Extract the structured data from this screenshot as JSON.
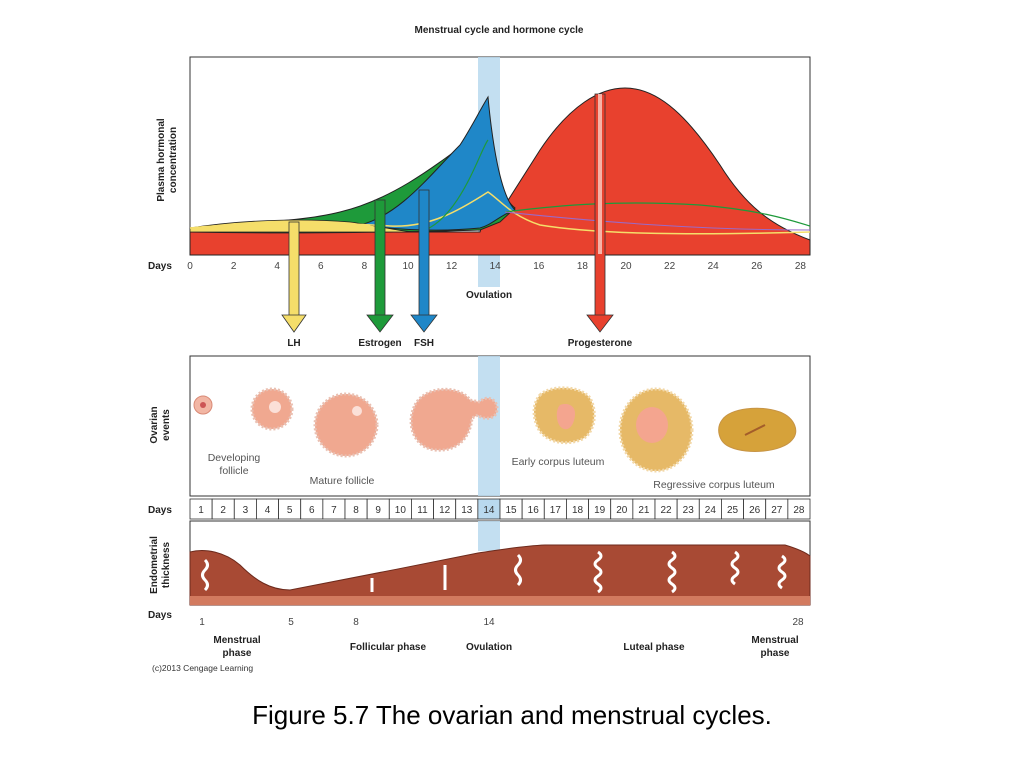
{
  "title": "Menstrual cycle and hormone cycle",
  "hormone_panel": {
    "ylabel_line1": "Plasma hormonal",
    "ylabel_line2": "concentration",
    "days_label": "Days",
    "ticks": [
      "0",
      "2",
      "4",
      "6",
      "8",
      "10",
      "12",
      "14",
      "16",
      "18",
      "20",
      "22",
      "24",
      "26",
      "28"
    ],
    "ovulation_label": "Ovulation"
  },
  "arrows": [
    {
      "label": "LH",
      "color": "#f5de6a"
    },
    {
      "label": "Estrogen",
      "color": "#1e9a3a"
    },
    {
      "label": "FSH",
      "color": "#1f87c8"
    },
    {
      "label": "Progesterone",
      "color": "#e8412e"
    }
  ],
  "ovarian_panel": {
    "ylabel_line1": "Ovarian",
    "ylabel_line2": "events",
    "labels": {
      "developing_1": "Developing",
      "developing_2": "follicle",
      "mature": "Mature follicle",
      "early": "Early corpus luteum",
      "regressive": "Regressive corpus luteum"
    }
  },
  "day_strip": {
    "label": "Days",
    "days": [
      "1",
      "2",
      "3",
      "4",
      "5",
      "6",
      "7",
      "8",
      "9",
      "10",
      "11",
      "12",
      "13",
      "14",
      "15",
      "16",
      "17",
      "18",
      "19",
      "20",
      "21",
      "22",
      "23",
      "24",
      "25",
      "26",
      "27",
      "28"
    ]
  },
  "endometrium_panel": {
    "ylabel_line1": "Endometrial",
    "ylabel_line2": "thickness",
    "days_label": "Days",
    "ticks": [
      "1",
      "5",
      "8",
      "14",
      "28"
    ]
  },
  "phases": {
    "menstrual_1": "Menstrual",
    "menstrual_2": "phase",
    "follicular": "Follicular phase",
    "ovulation": "Ovulation",
    "luteal": "Luteal phase",
    "menstrual_end_1": "Menstrual",
    "menstrual_end_2": "phase"
  },
  "copyright": "(c)2013 Cengage Learning",
  "caption": "Figure 5.7 The ovarian and menstrual cycles.",
  "colors": {
    "lh": "#f5de6a",
    "estrogen": "#1e9a3a",
    "fsh": "#1f87c8",
    "progesterone": "#e8412e",
    "ovulation_band": "#b9d9ee",
    "endometrium": "#a84a34"
  }
}
